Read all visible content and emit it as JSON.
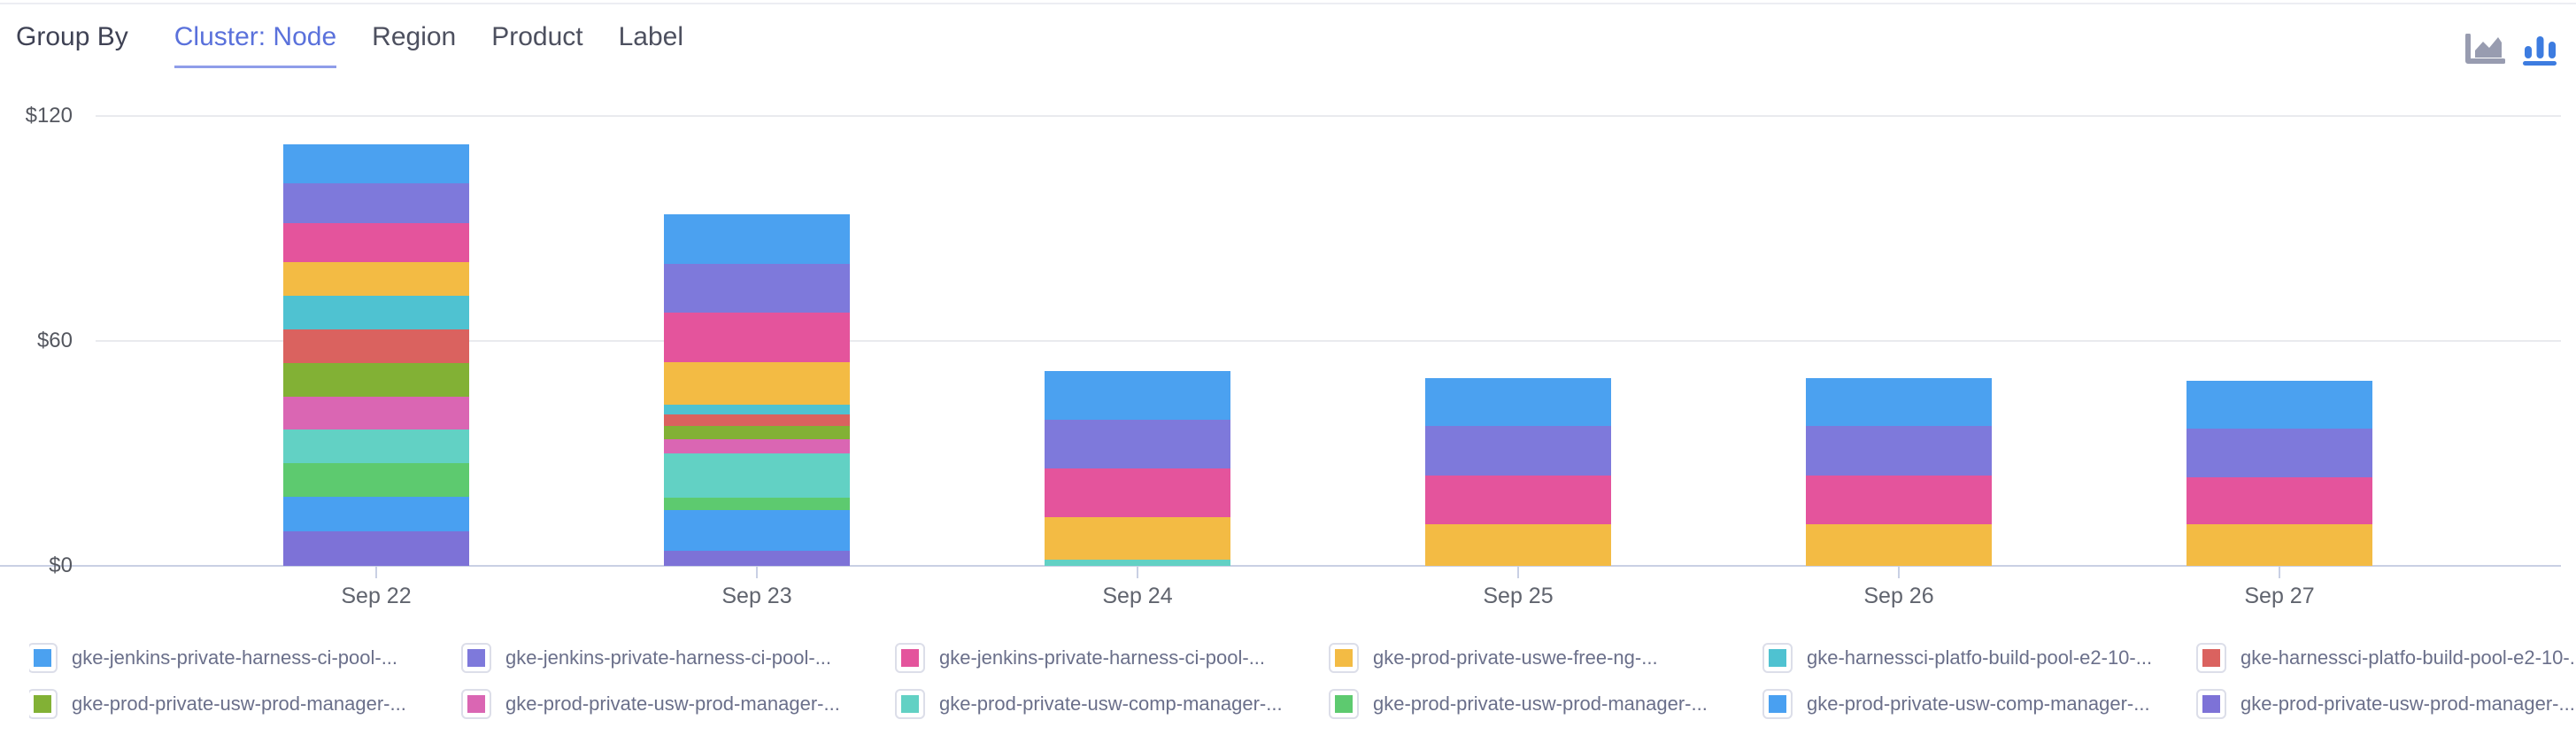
{
  "header": {
    "group_by_label": "Group By",
    "tabs": [
      {
        "label": "Cluster: Node",
        "active": true
      },
      {
        "label": "Region",
        "active": false
      },
      {
        "label": "Product",
        "active": false
      },
      {
        "label": "Label",
        "active": false
      }
    ],
    "chart_toggles": [
      {
        "name": "area-chart",
        "active": false
      },
      {
        "name": "bar-chart",
        "active": true
      }
    ]
  },
  "colors": {
    "active_tab": "#5A71DB",
    "tab_underline": "#8F9DE9",
    "axis_line": "#C9D0E4",
    "gridline": "#E9EAEE",
    "area_icon_inactive": "#989CB0",
    "bar_icon_active": "#3D7CE0"
  },
  "chart_data": {
    "type": "bar",
    "stacked": true,
    "stack_order": "first-series-on-top",
    "legend_position": "bottom",
    "grid": true,
    "categories": [
      "Sep 22",
      "Sep 23",
      "Sep 24",
      "Sep 25",
      "Sep 26",
      "Sep 27"
    ],
    "ylim": [
      0,
      120
    ],
    "yticks": [
      {
        "label": "$0",
        "value": 0
      },
      {
        "label": "$60",
        "value": 60
      },
      {
        "label": "$120",
        "value": 120
      }
    ],
    "series": [
      {
        "name": "gke-jenkins-private-harness-ci-pool-...",
        "color": "#4BA1F0",
        "values": [
          10.4,
          13.2,
          12.9,
          12.6,
          12.6,
          12.6
        ]
      },
      {
        "name": "gke-jenkins-private-harness-ci-pool-...",
        "color": "#7E79DB",
        "values": [
          10.5,
          13.0,
          13.1,
          13.2,
          13.2,
          13.1
        ]
      },
      {
        "name": "gke-jenkins-private-harness-ci-pool-...",
        "color": "#E4549C",
        "values": [
          10.4,
          13.2,
          12.8,
          13.0,
          13.0,
          12.4
        ]
      },
      {
        "name": "gke-prod-private-uswe-free-ng-...",
        "color": "#F3BB44",
        "values": [
          9.0,
          11.3,
          11.4,
          11.2,
          11.2,
          11.2
        ]
      },
      {
        "name": "gke-harnessci-platfo-build-pool-e2-10-...",
        "color": "#4FC2D1",
        "values": [
          9.1,
          2.7,
          0,
          0,
          0,
          0
        ]
      },
      {
        "name": "gke-harnessci-platfo-build-pool-e2-10-...",
        "color": "#DA625F",
        "values": [
          8.9,
          3.0,
          0,
          0,
          0,
          0
        ]
      },
      {
        "name": "gke-prod-private-usw-prod-manager-...",
        "color": "#82B135",
        "values": [
          8.9,
          3.5,
          0,
          0,
          0,
          0
        ]
      },
      {
        "name": "gke-prod-private-usw-prod-manager-...",
        "color": "#DA66B3",
        "values": [
          8.9,
          3.9,
          0,
          0,
          0,
          0
        ]
      },
      {
        "name": "gke-prod-private-usw-comp-manager-...",
        "color": "#62D1C4",
        "values": [
          8.9,
          11.7,
          1.7,
          0,
          0,
          0
        ]
      },
      {
        "name": "gke-prod-private-usw-prod-manager-...",
        "color": "#5DCA6F",
        "values": [
          9.0,
          3.3,
          0,
          0,
          0,
          0
        ]
      },
      {
        "name": "gke-prod-private-usw-comp-manager-...",
        "color": "#49A0F1",
        "values": [
          9.1,
          11.0,
          0,
          0,
          0,
          0
        ]
      },
      {
        "name": "gke-prod-private-usw-prod-manager-...",
        "color": "#7D72D7",
        "values": [
          9.3,
          3.9,
          0,
          0,
          0,
          0
        ]
      }
    ]
  }
}
